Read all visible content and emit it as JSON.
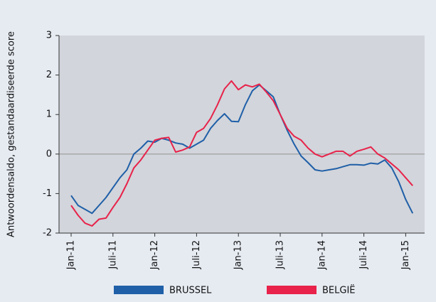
{
  "chart_data": {
    "type": "line",
    "y_label": "Antwoordensaldo, gestandaardiseerde score",
    "categories": [
      "Jan-11",
      null,
      null,
      null,
      null,
      null,
      "Juli-11",
      null,
      null,
      null,
      null,
      null,
      "Jan-12",
      null,
      null,
      null,
      null,
      null,
      "Juli-12",
      null,
      null,
      null,
      null,
      null,
      "Jan-13",
      null,
      null,
      null,
      null,
      null,
      "Juli-13",
      null,
      null,
      null,
      null,
      null,
      "Jan-14",
      null,
      null,
      null,
      null,
      null,
      "Juli-14",
      null,
      null,
      null,
      null,
      null,
      "Jan-15",
      null
    ],
    "series": [
      {
        "name": "BRUSSEL",
        "color": "#1f5fa8",
        "values": [
          -1.05,
          -1.3,
          -1.4,
          -1.5,
          -1.3,
          -1.1,
          -0.85,
          -0.6,
          -0.4,
          0.0,
          0.15,
          0.33,
          0.3,
          0.4,
          0.35,
          0.28,
          0.25,
          0.15,
          0.25,
          0.35,
          0.65,
          0.85,
          1.02,
          0.83,
          0.82,
          1.25,
          1.6,
          1.75,
          1.6,
          1.45,
          1.0,
          0.6,
          0.25,
          -0.05,
          -0.22,
          -0.4,
          -0.43,
          -0.4,
          -0.37,
          -0.32,
          -0.27,
          -0.27,
          -0.28,
          -0.23,
          -0.25,
          -0.15,
          -0.35,
          -0.7,
          -1.15,
          -1.5
        ]
      },
      {
        "name": "BELGIË",
        "color": "#e8224a",
        "values": [
          -1.3,
          -1.55,
          -1.75,
          -1.82,
          -1.65,
          -1.62,
          -1.35,
          -1.1,
          -0.75,
          -0.35,
          -0.15,
          0.1,
          0.35,
          0.4,
          0.42,
          0.05,
          0.1,
          0.18,
          0.55,
          0.65,
          0.9,
          1.25,
          1.65,
          1.85,
          1.63,
          1.75,
          1.7,
          1.77,
          1.57,
          1.35,
          1.0,
          0.65,
          0.45,
          0.35,
          0.15,
          0.0,
          -0.07,
          0.0,
          0.07,
          0.07,
          -0.05,
          0.07,
          0.12,
          0.18,
          0.0,
          -0.1,
          -0.25,
          -0.4,
          -0.6,
          -0.8
        ]
      }
    ],
    "ylim": [
      -2,
      3
    ],
    "yticks": [
      -2,
      -1,
      0,
      1,
      2,
      3
    ],
    "grid": false
  }
}
